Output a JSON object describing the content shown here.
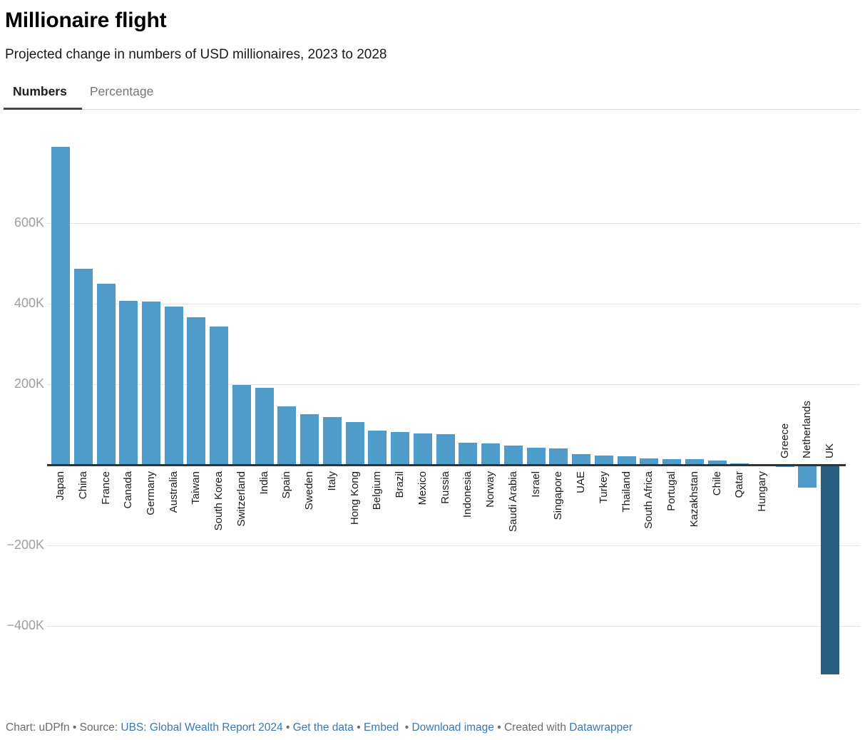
{
  "header": {
    "title": "Millionaire flight",
    "subtitle": "Projected change in numbers of USD millionaires, 2023 to 2028"
  },
  "tabs": {
    "numbers": "Numbers",
    "percentage": "Percentage"
  },
  "chart_data": {
    "type": "bar",
    "title": "Millionaire flight",
    "subtitle": "Projected change in numbers of USD millionaires, 2023 to 2028",
    "xlabel": "",
    "ylabel": "",
    "unit": "people",
    "ylim": [
      -560000,
      820000
    ],
    "grid": true,
    "categories": [
      "Japan",
      "China",
      "France",
      "Canada",
      "Germany",
      "Australia",
      "Taiwan",
      "South Korea",
      "Switzerland",
      "India",
      "Spain",
      "Sweden",
      "Italy",
      "Hong Kong",
      "Belgium",
      "Brazil",
      "Mexico",
      "Russia",
      "Indonesia",
      "Norway",
      "Saudi Arabia",
      "Israel",
      "Singapore",
      "UAE",
      "Turkey",
      "Thailand",
      "South Africa",
      "Portugal",
      "Kazakhstan",
      "Chile",
      "Qatar",
      "Hungary",
      "Greece",
      "Netherlands",
      "UK"
    ],
    "values": [
      790000,
      487000,
      450000,
      407000,
      405000,
      393000,
      366000,
      343000,
      199000,
      192000,
      145000,
      126000,
      119000,
      106000,
      85000,
      81000,
      78000,
      77000,
      55000,
      53000,
      48000,
      42000,
      40000,
      26000,
      23000,
      21000,
      16000,
      15000,
      14000,
      11000,
      4000,
      2000,
      -1000,
      -53000,
      -517000
    ],
    "bar_color": "#4f9cca",
    "highlight": {
      "category": "UK",
      "color": "#2b5f80"
    },
    "y_axis_ticks": [
      {
        "value": 600000,
        "label": "600K"
      },
      {
        "value": 400000,
        "label": "400K"
      },
      {
        "value": 200000,
        "label": "200K"
      },
      {
        "value": -200000,
        "label": "−200K"
      },
      {
        "value": -400000,
        "label": "−400K"
      }
    ]
  },
  "footer": {
    "parts": [
      {
        "text": "Chart: uDPfn",
        "type": "text",
        "name": "chart-id-text"
      },
      {
        "text": " • ",
        "type": "sep",
        "name": "footer-separator"
      },
      {
        "text": "Source: ",
        "type": "text",
        "name": "source-label"
      },
      {
        "text": "UBS: Global Wealth Report 2024",
        "type": "link",
        "name": "source-link"
      },
      {
        "text": " • ",
        "type": "sep",
        "name": "footer-separator"
      },
      {
        "text": "Get the data",
        "type": "link",
        "name": "get-the-data-link"
      },
      {
        "text": " • ",
        "type": "sep",
        "name": "footer-separator"
      },
      {
        "text": "Embed",
        "type": "link",
        "name": "embed-link"
      },
      {
        "text": "  • ",
        "type": "sep",
        "name": "footer-separator"
      },
      {
        "text": "Download image",
        "type": "link",
        "name": "download-image-link"
      },
      {
        "text": " • ",
        "type": "sep",
        "name": "footer-separator"
      },
      {
        "text": "Created with ",
        "type": "text",
        "name": "created-with-label"
      },
      {
        "text": "Datawrapper",
        "type": "link",
        "name": "datawrapper-link"
      }
    ]
  }
}
